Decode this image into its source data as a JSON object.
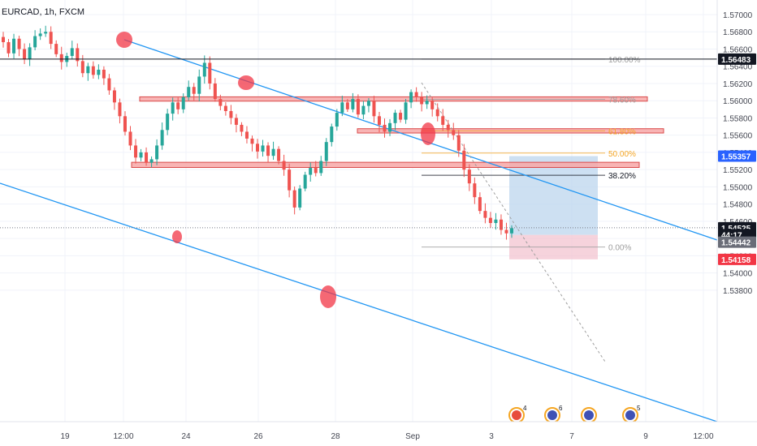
{
  "colors": {
    "up": "#26a69a",
    "down": "#ef5350",
    "channel": "#2196f3",
    "zone_fill": "#f7a7a7",
    "zone_stroke": "#d94a4a",
    "long_target": "#bcd6ee",
    "long_stop": "#f3c4d0",
    "marker": "#f23645",
    "price_tag_dark": "#131722",
    "price_tag_blue": "#2962ff",
    "price_tag_red": "#f23645",
    "fib_orange": "#f5a623",
    "fib_gray": "#9e9e9e"
  },
  "chart_data": {
    "type": "candlestick",
    "symbol": "EURCAD, 1h, FXCM",
    "x_ticks": [
      "19",
      "12:00",
      "24",
      "26",
      "28",
      "Sep",
      "3",
      "7",
      "9",
      "12:00"
    ],
    "y_ticks": [
      "1.57000",
      "1.56800",
      "1.56600",
      "1.56400",
      "1.56200",
      "1.56000",
      "1.55800",
      "1.55600",
      "1.55400",
      "1.55200",
      "1.55000",
      "1.54800",
      "1.54600",
      "1.54400",
      "1.54200",
      "1.54000",
      "1.53800"
    ],
    "ylim": [
      1.5376,
      1.5712
    ],
    "price_tags": [
      {
        "label": "1.56483",
        "value": 1.56483,
        "style": "dark"
      },
      {
        "label": "1.55357",
        "value": 1.55357,
        "style": "blue"
      },
      {
        "label": "1.54525",
        "value": 1.54525,
        "style": "dark"
      },
      {
        "label": "44:17",
        "value": 1.54445,
        "style": "dark"
      },
      {
        "label": "1.54442",
        "value": 1.54358,
        "style": "gray"
      },
      {
        "label": "1.54158",
        "value": 1.54158,
        "style": "red"
      }
    ],
    "fib_levels": [
      {
        "label": "100.00%",
        "value": 1.56483,
        "color": "gray"
      },
      {
        "label": "78.60%",
        "value": 1.56016,
        "color": "gray"
      },
      {
        "label": "61.80%",
        "value": 1.5565,
        "color": "orange"
      },
      {
        "label": "50.00%",
        "value": 1.55392,
        "color": "orange"
      },
      {
        "label": "38.20%",
        "value": 1.55134,
        "color": "black"
      },
      {
        "label": "0.00%",
        "value": 1.54301,
        "color": "gray"
      }
    ],
    "resistance_zones": [
      {
        "low": 1.55995,
        "high": 1.56045
      },
      {
        "low": 1.55625,
        "high": 1.55675
      },
      {
        "low": 1.55225,
        "high": 1.55285
      }
    ],
    "position": {
      "type": "long",
      "entry": 1.54442,
      "target": 1.55357,
      "stop": 1.54158
    },
    "candles_close": [
      1.5668,
      1.5655,
      1.5672,
      1.566,
      1.5648,
      1.5662,
      1.5675,
      1.5678,
      1.568,
      1.5666,
      1.5654,
      1.5645,
      1.5652,
      1.5661,
      1.5646,
      1.5632,
      1.564,
      1.563,
      1.5636,
      1.5626,
      1.5612,
      1.5598,
      1.5582,
      1.5564,
      1.5548,
      1.5534,
      1.554,
      1.5528,
      1.5532,
      1.5548,
      1.5566,
      1.5585,
      1.5598,
      1.559,
      1.5604,
      1.5616,
      1.5608,
      1.5628,
      1.5644,
      1.562,
      1.5602,
      1.5594,
      1.5588,
      1.558,
      1.5572,
      1.5564,
      1.5556,
      1.555,
      1.5541,
      1.5548,
      1.5536,
      1.5544,
      1.553,
      1.552,
      1.5496,
      1.5476,
      1.5498,
      1.5514,
      1.5522,
      1.5516,
      1.553,
      1.5552,
      1.557,
      1.5586,
      1.5598,
      1.559,
      1.5602,
      1.5584,
      1.5594,
      1.56,
      1.5582,
      1.5572,
      1.5564,
      1.5574,
      1.5586,
      1.5578,
      1.5598,
      1.561,
      1.5604,
      1.5596,
      1.56,
      1.559,
      1.5582,
      1.5572,
      1.5566,
      1.556,
      1.5542,
      1.552,
      1.5504,
      1.5488,
      1.5472,
      1.5464,
      1.5458,
      1.5462,
      1.545,
      1.5446,
      1.5452
    ]
  }
}
